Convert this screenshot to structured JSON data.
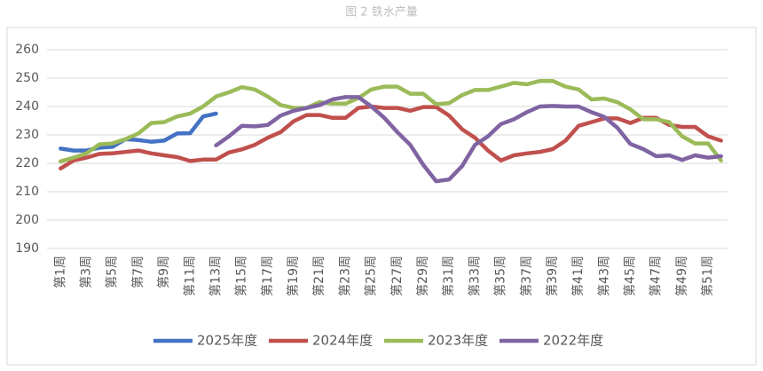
{
  "chart_data": {
    "type": "line",
    "title": "图 2 铁水产量",
    "categories": [
      "第1周",
      null,
      "第3周",
      null,
      "第5周",
      null,
      "第7周",
      null,
      "第9周",
      null,
      "第11周",
      null,
      "第13周",
      null,
      "第15周",
      null,
      "第17周",
      null,
      "第19周",
      null,
      "第21周",
      null,
      "第23周",
      null,
      "第25周",
      null,
      "第27周",
      null,
      "第29周",
      null,
      "第31周",
      null,
      "第33周",
      null,
      "第35周",
      null,
      "第37周",
      null,
      "第39周",
      null,
      "第41周",
      null,
      "第43周",
      null,
      "第45周",
      null,
      "第47周",
      null,
      "第49周",
      null,
      "第51周",
      null
    ],
    "series": [
      {
        "name": "2025年度",
        "color": "#4472c4",
        "values": [
          225.2,
          224.5,
          224.5,
          225.5,
          225.8,
          228.5,
          228.2,
          227.6,
          228.0,
          230.5,
          230.6,
          236.5,
          237.5,
          null,
          null,
          null,
          null,
          null,
          null,
          null,
          null,
          null,
          null,
          null,
          null,
          null,
          null,
          null,
          null,
          null,
          null,
          null,
          null,
          null,
          null,
          null,
          null,
          null,
          null,
          null,
          null,
          null,
          null,
          null,
          null,
          null,
          null,
          null,
          null,
          null,
          null,
          null
        ]
      },
      {
        "name": "2024年度",
        "color": "#c0504d",
        "values": [
          218.2,
          221,
          222,
          223.3,
          223.5,
          224,
          224.5,
          223.5,
          222.8,
          222.2,
          220.8,
          221.3,
          221.3,
          223.8,
          224.9,
          226.5,
          229,
          231,
          234.8,
          237,
          237,
          236,
          236,
          239.5,
          240,
          239.5,
          239.5,
          238.5,
          239.8,
          239.8,
          236.8,
          232,
          229,
          224.5,
          221,
          222.8,
          223.5,
          224,
          225,
          228,
          233.2,
          234.5,
          235.8,
          235.8,
          234.2,
          236,
          236,
          233.5,
          232.8,
          232.8,
          229.5,
          228
        ]
      },
      {
        "name": "2023年度",
        "color": "#9bbb59",
        "values": [
          220.7,
          222,
          223.5,
          226.7,
          227,
          228.5,
          230.5,
          234.2,
          234.5,
          236.5,
          237.5,
          240,
          243.5,
          245,
          246.8,
          246,
          243.5,
          240.5,
          239.5,
          239.5,
          241.5,
          241,
          241,
          243,
          246,
          247,
          247,
          244.5,
          244.5,
          240.8,
          241.2,
          244,
          245.8,
          245.8,
          247,
          248.3,
          247.8,
          249,
          249,
          247,
          246,
          242.5,
          242.8,
          241.5,
          239,
          235.5,
          235.5,
          234.5,
          229.5,
          227,
          227,
          221
        ]
      },
      {
        "name": "2022年度",
        "color": "#8064a2",
        "values": [
          null,
          null,
          null,
          null,
          null,
          null,
          null,
          null,
          null,
          null,
          null,
          null,
          226.3,
          229.5,
          233.2,
          233,
          233.5,
          236.8,
          238.5,
          239.5,
          240.5,
          242.5,
          243.3,
          243.3,
          240,
          236,
          231,
          226.5,
          219.5,
          213.7,
          214.3,
          219,
          226.5,
          229.5,
          233.8,
          235.5,
          238,
          240,
          240.2,
          240,
          240,
          238,
          236.3,
          232.5,
          226.8,
          225,
          222.5,
          222.8,
          221.2,
          222.8,
          222,
          222.5
        ]
      }
    ],
    "ylim": [
      190,
      260
    ],
    "yticks": [
      190,
      200,
      210,
      220,
      230,
      240,
      250,
      260
    ],
    "grid": true,
    "legend": "bottom"
  }
}
